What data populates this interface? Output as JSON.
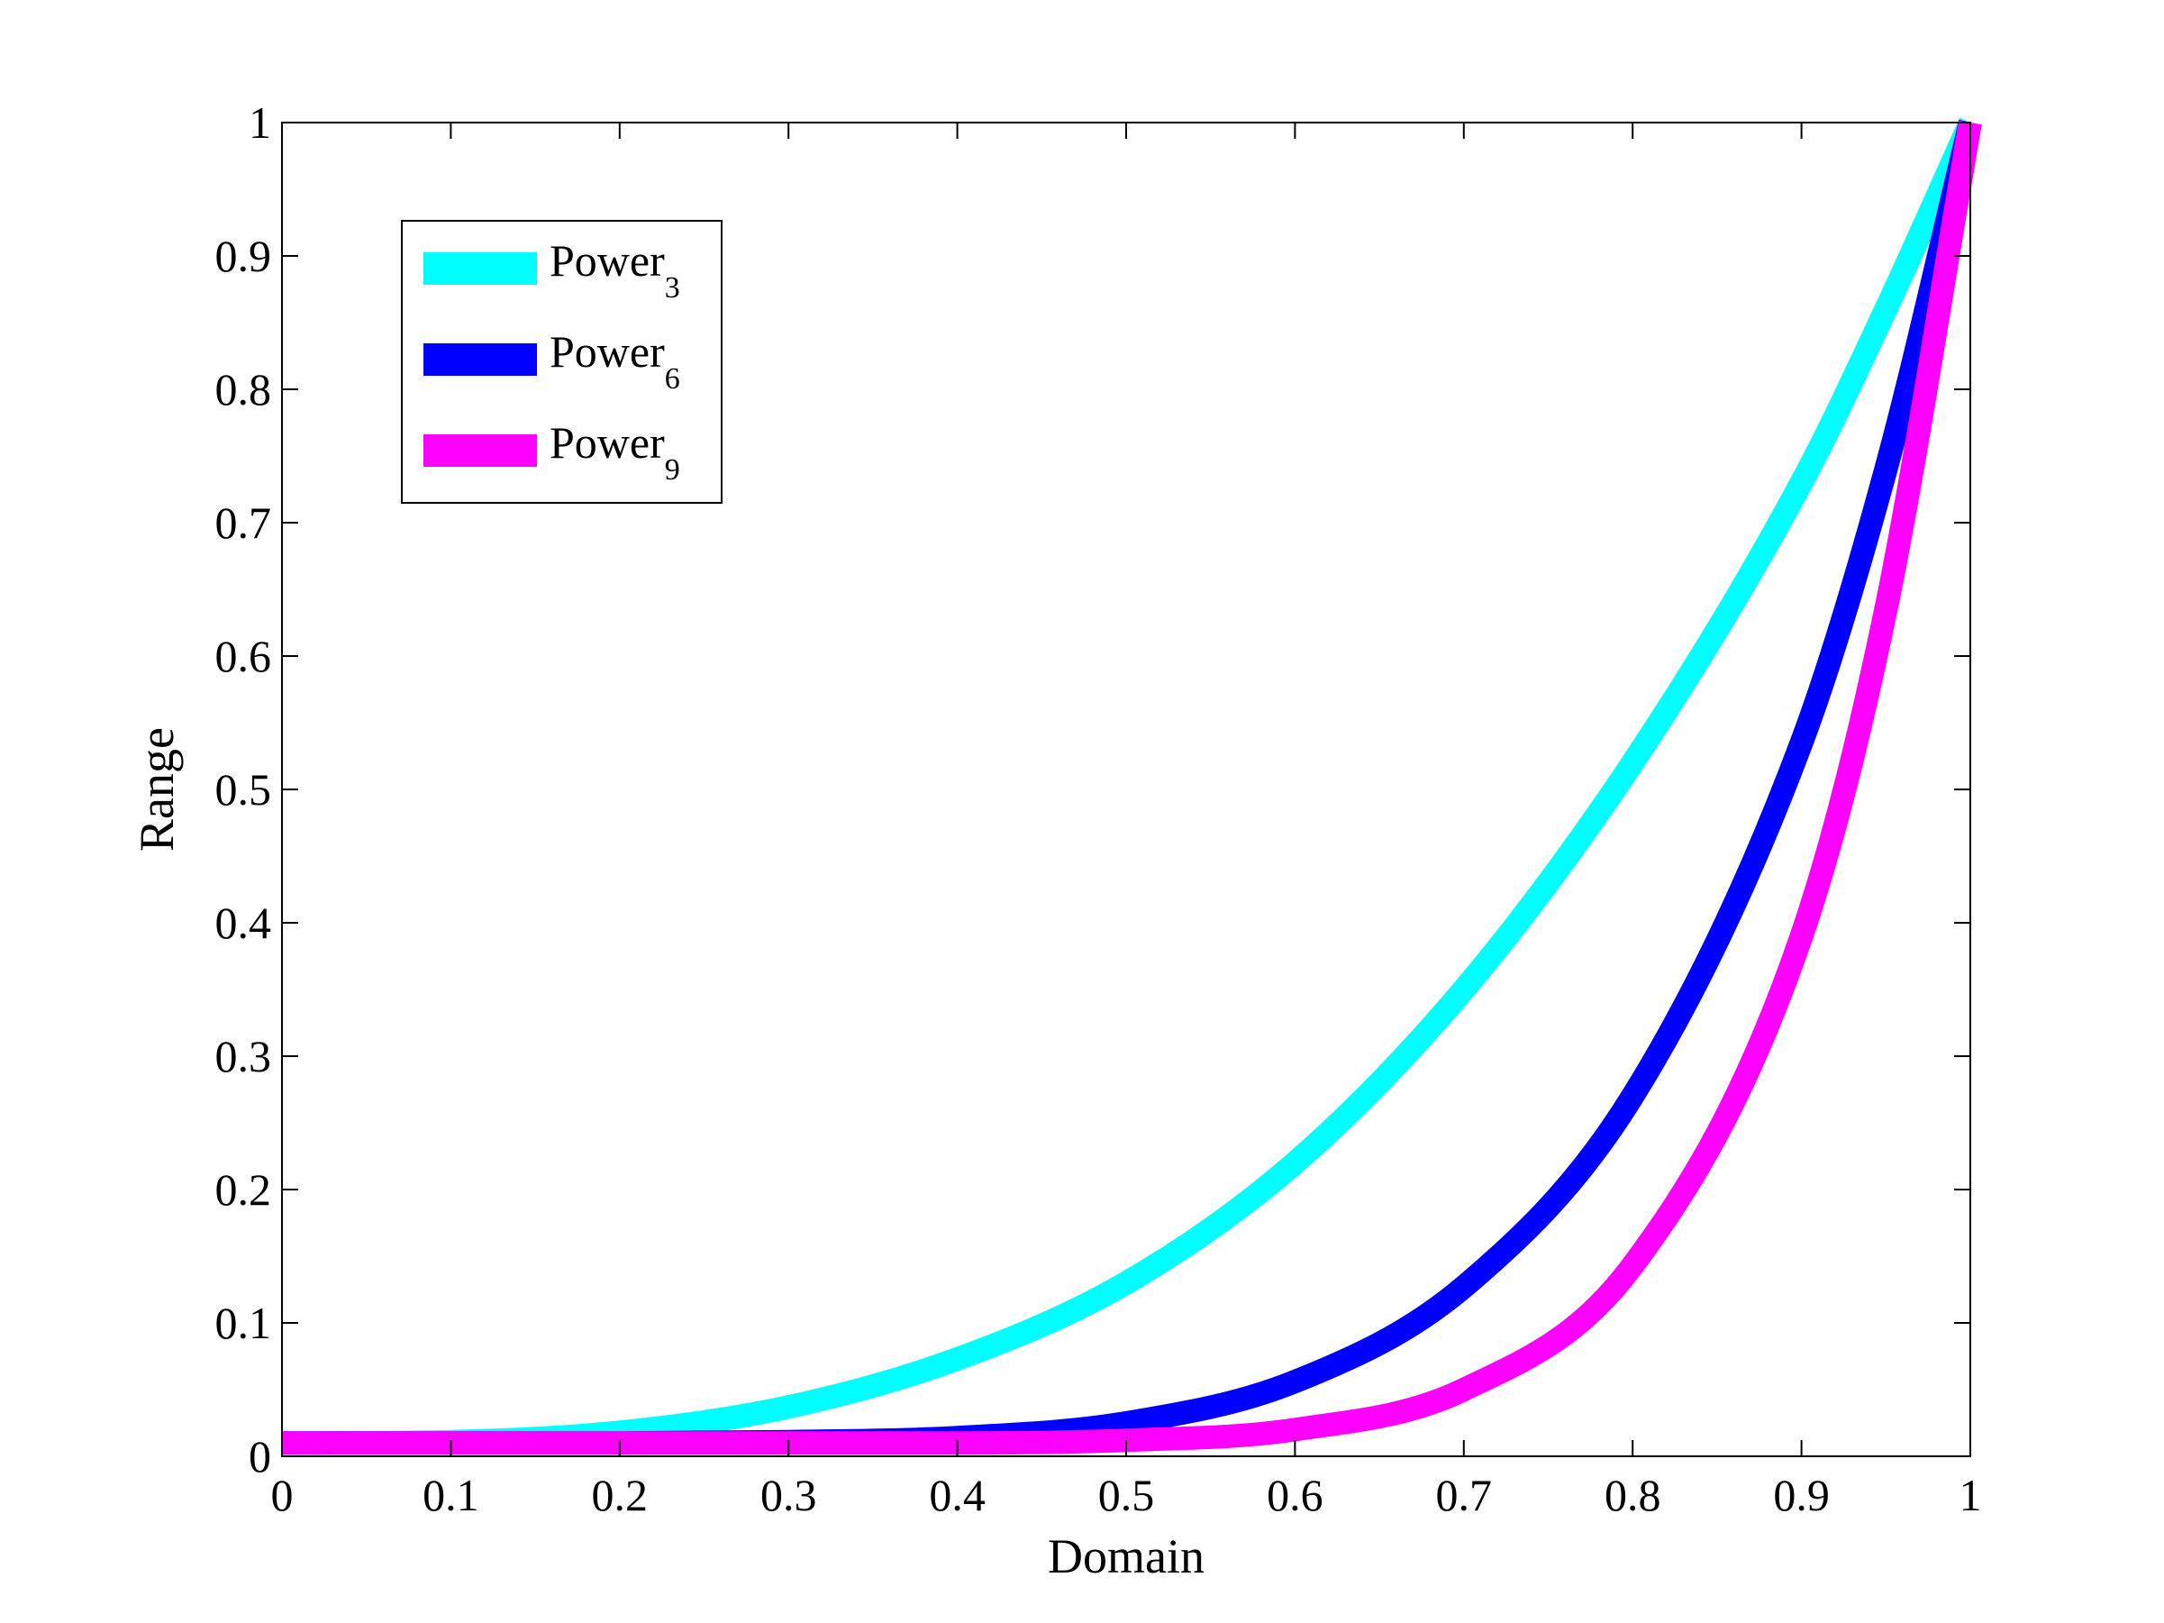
{
  "chart_data": {
    "type": "line",
    "title": "",
    "xlabel": "Domain",
    "ylabel": "Range",
    "xlim": [
      0,
      1
    ],
    "ylim": [
      0,
      1
    ],
    "xticks": [
      "0",
      "0.1",
      "0.2",
      "0.3",
      "0.4",
      "0.5",
      "0.6",
      "0.7",
      "0.8",
      "0.9",
      "1"
    ],
    "yticks": [
      "0",
      "0.1",
      "0.2",
      "0.3",
      "0.4",
      "0.5",
      "0.6",
      "0.7",
      "0.8",
      "0.9",
      "1"
    ],
    "grid": false,
    "legend_position": "top-left",
    "x": [
      0,
      0.1,
      0.2,
      0.3,
      0.4,
      0.5,
      0.6,
      0.7,
      0.8,
      0.9,
      0.95,
      1.0
    ],
    "series": [
      {
        "name": "Power",
        "subscript": "3",
        "color": "#00FFFF",
        "values": [
          0.01,
          0.011,
          0.018,
          0.037,
          0.073,
          0.13,
          0.22,
          0.35,
          0.52,
          0.73,
          0.86,
          1.0
        ]
      },
      {
        "name": "Power",
        "subscript": "6",
        "color": "#0000FF",
        "values": [
          0.01,
          0.01,
          0.01,
          0.011,
          0.014,
          0.025,
          0.056,
          0.127,
          0.27,
          0.535,
          0.74,
          1.0
        ]
      },
      {
        "name": "Power",
        "subscript": "9",
        "color": "#FF00FF",
        "values": [
          0.01,
          0.01,
          0.01,
          0.01,
          0.01,
          0.012,
          0.02,
          0.05,
          0.143,
          0.39,
          0.635,
          1.0
        ]
      }
    ]
  }
}
